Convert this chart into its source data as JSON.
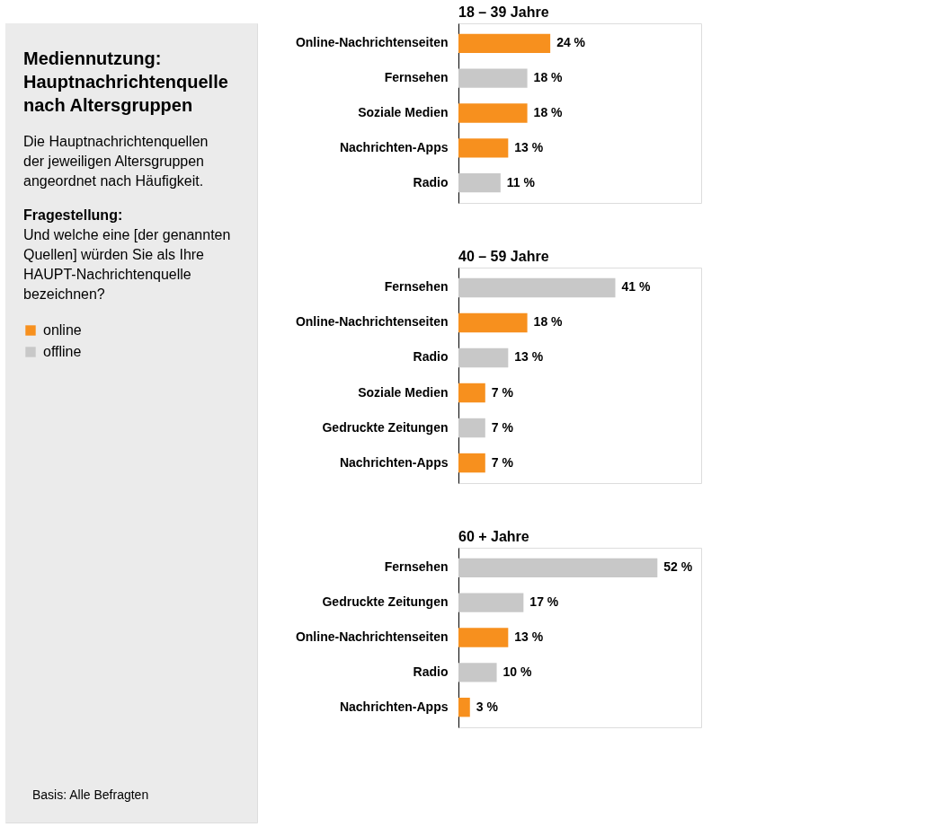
{
  "chart_data": [
    {
      "type": "other",
      "title": "Mediennutzung: Hauptnachrichtenquelle nach Altersgruppen",
      "subtitle": "Die Hauptnachrichtenquellen der jeweiligen Altersgruppen angeordnet nach Häufigkeit.",
      "annotations": [
        "Fragestellung:",
        "Und welche eine [der genannten Quellen] würden Sie als Ihre HAUPT-Nachrichtenquelle bezeichnen?",
        "Basis: Alle Befragten"
      ]
    },
    {
      "type": "bar",
      "orientation": "horizontal",
      "stacked": true,
      "title": "18 – 39 Jahre",
      "categories": [
        "Online-Nachrichtenseiten",
        "Fernsehen",
        "Soziale Medien",
        "Nachrichten-Apps",
        "Radio"
      ],
      "grid": false,
      "legend": "left",
      "tick_labels": "y",
      "series": [
        {
          "name": "online",
          "color": "#f7901e",
          "values": [
            24,
            null,
            18,
            13,
            null
          ],
          "value_labels": [
            "24 %",
            null,
            "18 %",
            "13 %",
            null
          ]
        },
        {
          "name": "offline",
          "color": "#c8c8c8",
          "values": [
            null,
            18,
            null,
            null,
            11
          ],
          "value_labels": [
            null,
            "18 %",
            null,
            null,
            "11 %"
          ]
        }
      ]
    },
    {
      "type": "bar",
      "orientation": "horizontal",
      "stacked": true,
      "title": "40 – 59 Jahre",
      "categories": [
        "Fernsehen",
        "Online-Nachrichtenseiten",
        "Radio",
        "Soziale Medien",
        "Gedruckte Zeitungen",
        "Nachrichten-Apps"
      ],
      "grid": false,
      "tick_labels": "y",
      "series": [
        {
          "color": "#f7901e",
          "values": [
            null,
            18,
            null,
            7,
            null,
            7
          ],
          "value_labels": [
            null,
            "18 %",
            null,
            "7 %",
            null,
            "7 %"
          ]
        },
        {
          "color": "#c8c8c8",
          "values": [
            41,
            null,
            13,
            null,
            7,
            null
          ],
          "value_labels": [
            "41 %",
            null,
            "13 %",
            null,
            "7 %",
            null
          ]
        }
      ]
    },
    {
      "type": "bar",
      "orientation": "horizontal",
      "stacked": true,
      "title": "60 + Jahre",
      "categories": [
        "Fernsehen",
        "Gedruckte Zeitungen",
        "Online-Nachrichtenseiten",
        "Radio",
        "Nachrichten-Apps"
      ],
      "grid": false,
      "tick_labels": "y",
      "series": [
        {
          "color": "#f7901e",
          "values": [
            null,
            null,
            13,
            null,
            3
          ],
          "value_labels": [
            null,
            null,
            "13 %",
            null,
            "3 %"
          ]
        },
        {
          "color": "#c8c8c8",
          "values": [
            52,
            17,
            null,
            10,
            null
          ],
          "value_labels": [
            "52 %",
            "17 %",
            null,
            "10 %",
            null
          ]
        }
      ]
    }
  ]
}
